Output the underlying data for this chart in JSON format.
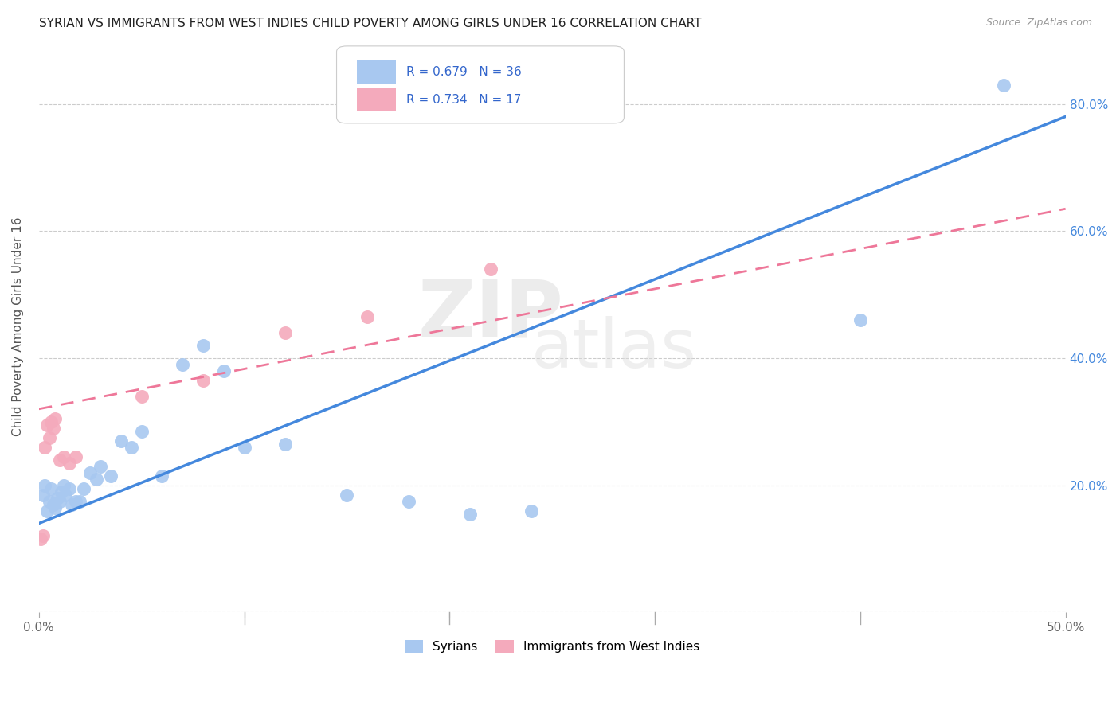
{
  "title": "SYRIAN VS IMMIGRANTS FROM WEST INDIES CHILD POVERTY AMONG GIRLS UNDER 16 CORRELATION CHART",
  "source": "Source: ZipAtlas.com",
  "ylabel": "Child Poverty Among Girls Under 16",
  "xlim": [
    0.0,
    0.5
  ],
  "ylim": [
    0.0,
    0.9
  ],
  "xticks": [
    0.0,
    0.1,
    0.2,
    0.3,
    0.4,
    0.5
  ],
  "xticklabels": [
    "0.0%",
    "",
    "",
    "",
    "",
    "50.0%"
  ],
  "yticks": [
    0.0,
    0.2,
    0.4,
    0.6,
    0.8
  ],
  "yticklabels_right": [
    "",
    "20.0%",
    "40.0%",
    "60.0%",
    "80.0%"
  ],
  "legend_labels": [
    "Syrians",
    "Immigrants from West Indies"
  ],
  "legend_r_blue": "R = 0.679",
  "legend_n_blue": "N = 36",
  "legend_r_pink": "R = 0.734",
  "legend_n_pink": "N = 17",
  "blue_color": "#A8C8F0",
  "pink_color": "#F4AABC",
  "blue_line_color": "#4488DD",
  "pink_line_color": "#EE7799",
  "grid_color": "#CCCCCC",
  "syrians_x": [
    0.002,
    0.003,
    0.004,
    0.005,
    0.006,
    0.007,
    0.008,
    0.009,
    0.01,
    0.011,
    0.012,
    0.013,
    0.015,
    0.016,
    0.018,
    0.02,
    0.022,
    0.025,
    0.028,
    0.03,
    0.035,
    0.04,
    0.045,
    0.05,
    0.06,
    0.07,
    0.08,
    0.09,
    0.1,
    0.12,
    0.15,
    0.18,
    0.21,
    0.24,
    0.4,
    0.47
  ],
  "syrians_y": [
    0.185,
    0.2,
    0.16,
    0.175,
    0.195,
    0.17,
    0.165,
    0.18,
    0.175,
    0.19,
    0.2,
    0.185,
    0.195,
    0.17,
    0.175,
    0.175,
    0.195,
    0.22,
    0.21,
    0.23,
    0.215,
    0.27,
    0.26,
    0.285,
    0.215,
    0.39,
    0.42,
    0.38,
    0.26,
    0.265,
    0.185,
    0.175,
    0.155,
    0.16,
    0.46,
    0.83
  ],
  "westindies_x": [
    0.001,
    0.002,
    0.003,
    0.004,
    0.005,
    0.006,
    0.007,
    0.008,
    0.01,
    0.012,
    0.015,
    0.018,
    0.05,
    0.08,
    0.12,
    0.16,
    0.22
  ],
  "westindies_y": [
    0.115,
    0.12,
    0.26,
    0.295,
    0.275,
    0.3,
    0.29,
    0.305,
    0.24,
    0.245,
    0.235,
    0.245,
    0.34,
    0.365,
    0.44,
    0.465,
    0.54
  ],
  "blue_line_x0": 0.0,
  "blue_line_y0": 0.14,
  "blue_line_x1": 0.5,
  "blue_line_y1": 0.78,
  "pink_line_x0": 0.0,
  "pink_line_y0": 0.32,
  "pink_line_x1": 0.5,
  "pink_line_y1": 0.635
}
